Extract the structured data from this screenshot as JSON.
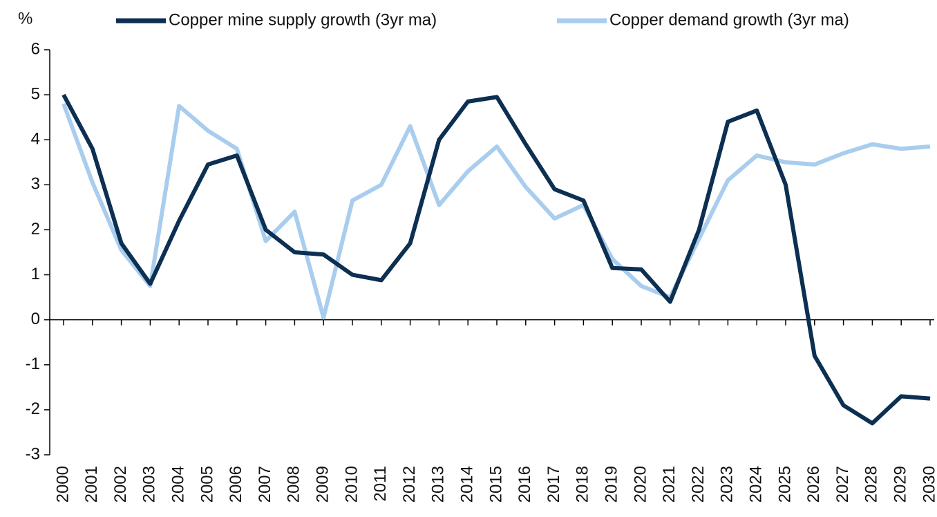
{
  "chart_data": {
    "type": "line",
    "ylabel": "%",
    "categories": [
      "2000",
      "2001",
      "2002",
      "2003",
      "2004",
      "2005",
      "2006",
      "2007",
      "2008",
      "2009",
      "2010",
      "2011",
      "2012",
      "2013",
      "2014",
      "2015",
      "2016",
      "2017",
      "2018",
      "2019",
      "2020",
      "2021",
      "2022",
      "2023",
      "2024",
      "2025",
      "2026",
      "2027",
      "2028",
      "2029",
      "2030"
    ],
    "series": [
      {
        "name": "Copper mine supply growth (3yr ma)",
        "color": "#0c2f52",
        "values": [
          5.0,
          3.8,
          1.7,
          0.8,
          2.2,
          3.45,
          3.65,
          2.0,
          1.5,
          1.45,
          1.0,
          0.88,
          1.7,
          4.0,
          4.85,
          4.95,
          3.9,
          2.9,
          2.65,
          1.15,
          1.12,
          0.4,
          2.0,
          4.4,
          4.65,
          3.0,
          -0.8,
          -1.9,
          -2.3,
          -1.7,
          -1.75
        ]
      },
      {
        "name": "Copper demand growth (3yr ma)",
        "color": "#a9cdee",
        "values": [
          4.8,
          3.05,
          1.55,
          0.75,
          4.75,
          4.2,
          3.8,
          1.75,
          2.4,
          0.05,
          2.65,
          3.0,
          4.3,
          2.55,
          3.3,
          3.85,
          2.95,
          2.25,
          2.55,
          1.35,
          0.75,
          0.5,
          1.8,
          3.1,
          3.65,
          3.5,
          3.45,
          3.7,
          3.9,
          3.8,
          3.85
        ]
      }
    ],
    "ylim": [
      -3,
      6
    ],
    "yticks": [
      -3,
      -2,
      -1,
      0,
      1,
      2,
      3,
      4,
      5,
      6
    ],
    "legend": "top"
  }
}
